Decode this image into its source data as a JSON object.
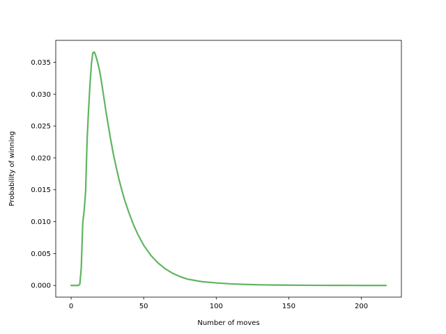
{
  "chart_data": {
    "type": "line",
    "title": "",
    "xlabel": "Number of moves",
    "ylabel": "Probability of winning",
    "xlim": [
      -10.6,
      227.6
    ],
    "ylim": [
      -0.00183,
      0.03843
    ],
    "xticks": [
      0,
      50,
      100,
      150,
      200
    ],
    "xtick_labels": [
      "0",
      "50",
      "100",
      "150",
      "200"
    ],
    "yticks": [
      0.0,
      0.005,
      0.01,
      0.015,
      0.02,
      0.025,
      0.03,
      0.035
    ],
    "ytick_labels": [
      "0.000",
      "0.005",
      "0.010",
      "0.015",
      "0.020",
      "0.025",
      "0.030",
      "0.035"
    ],
    "grid": false,
    "series": [
      {
        "color": "#5fb55f",
        "x": [
          0,
          1,
          2,
          3,
          4,
          5,
          6,
          7,
          8,
          9,
          10,
          11,
          12,
          13,
          14,
          15,
          16,
          17,
          18,
          19,
          20,
          21,
          22,
          23,
          24,
          25,
          27,
          29,
          31,
          33,
          35,
          37,
          40,
          43,
          46,
          50,
          55,
          60,
          65,
          70,
          75,
          80,
          90,
          100,
          110,
          120,
          130,
          140,
          150,
          160,
          170,
          180,
          190,
          200,
          210,
          217
        ],
        "y": [
          0.0,
          0.0,
          0.0,
          0.0,
          0.0,
          0.0,
          0.0002,
          0.0028,
          0.0098,
          0.0118,
          0.0148,
          0.0228,
          0.0275,
          0.0315,
          0.0348,
          0.0365,
          0.0366,
          0.036,
          0.0352,
          0.0343,
          0.0332,
          0.0318,
          0.0303,
          0.0288,
          0.0273,
          0.0259,
          0.0232,
          0.0207,
          0.0186,
          0.0166,
          0.0149,
          0.0133,
          0.0113,
          0.0095,
          0.008,
          0.0063,
          0.0047,
          0.0035,
          0.0026,
          0.0019,
          0.0014,
          0.001,
          0.0006,
          0.0004,
          0.00025,
          0.00016,
          0.0001,
          7e-05,
          5e-05,
          3e-05,
          2e-05,
          1e-05,
          1e-05,
          0.0,
          0.0,
          0.0
        ]
      }
    ]
  }
}
